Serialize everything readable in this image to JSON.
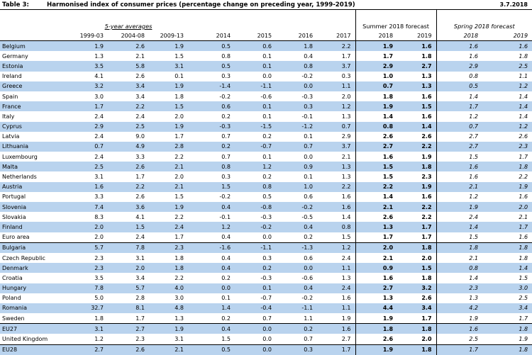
{
  "header": {
    "table_label": "Table 3:",
    "title": "Harmonised index of consumer prices (percentage change on preceding year, 1999-2019)",
    "date": "3.7.2018"
  },
  "group_headers": {
    "five_year_averages": "5-year averages",
    "summer_forecast": "Summer 2018 forecast",
    "spring_forecast": "Spring 2018 forecast"
  },
  "columns": [
    "1999-03",
    "2004-08",
    "2009-13",
    "2014",
    "2015",
    "2016",
    "2017",
    "2018",
    "2019",
    "2018",
    "2019"
  ],
  "rows": [
    {
      "country": "Belgium",
      "hl": true,
      "values": [
        "1.9",
        "2.6",
        "1.9",
        "0.5",
        "0.6",
        "1.8",
        "2.2",
        "1.9",
        "1.6",
        "1.6",
        "1.6"
      ]
    },
    {
      "country": "Germany",
      "hl": false,
      "values": [
        "1.3",
        "2.1",
        "1.5",
        "0.8",
        "0.1",
        "0.4",
        "1.7",
        "1.7",
        "1.8",
        "1.6",
        "1.8"
      ]
    },
    {
      "country": "Estonia",
      "hl": true,
      "values": [
        "3.5",
        "5.8",
        "3.1",
        "0.5",
        "0.1",
        "0.8",
        "3.7",
        "2.9",
        "2.7",
        "2.9",
        "2.5"
      ]
    },
    {
      "country": "Ireland",
      "hl": false,
      "values": [
        "4.1",
        "2.6",
        "0.1",
        "0.3",
        "0.0",
        "-0.2",
        "0.3",
        "1.0",
        "1.3",
        "0.8",
        "1.1"
      ]
    },
    {
      "country": "Greece",
      "hl": true,
      "values": [
        "3.2",
        "3.4",
        "1.9",
        "-1.4",
        "-1.1",
        "0.0",
        "1.1",
        "0.7",
        "1.3",
        "0.5",
        "1.2"
      ]
    },
    {
      "country": "Spain",
      "hl": false,
      "values": [
        "3.0",
        "3.4",
        "1.8",
        "-0.2",
        "-0.6",
        "-0.3",
        "2.0",
        "1.8",
        "1.6",
        "1.4",
        "1.4"
      ]
    },
    {
      "country": "France",
      "hl": true,
      "values": [
        "1.7",
        "2.2",
        "1.5",
        "0.6",
        "0.1",
        "0.3",
        "1.2",
        "1.9",
        "1.5",
        "1.7",
        "1.4"
      ]
    },
    {
      "country": "Italy",
      "hl": false,
      "values": [
        "2.4",
        "2.4",
        "2.0",
        "0.2",
        "0.1",
        "-0.1",
        "1.3",
        "1.4",
        "1.6",
        "1.2",
        "1.4"
      ]
    },
    {
      "country": "Cyprus",
      "hl": true,
      "values": [
        "2.9",
        "2.5",
        "1.9",
        "-0.3",
        "-1.5",
        "-1.2",
        "0.7",
        "0.8",
        "1.4",
        "0.7",
        "1.2"
      ]
    },
    {
      "country": "Latvia",
      "hl": false,
      "values": [
        "2.4",
        "9.0",
        "1.7",
        "0.7",
        "0.2",
        "0.1",
        "2.9",
        "2.6",
        "2.6",
        "2.7",
        "2.6"
      ]
    },
    {
      "country": "Lithuania",
      "hl": true,
      "values": [
        "0.7",
        "4.9",
        "2.8",
        "0.2",
        "-0.7",
        "0.7",
        "3.7",
        "2.7",
        "2.2",
        "2.7",
        "2.3"
      ]
    },
    {
      "country": "Luxembourg",
      "hl": false,
      "values": [
        "2.4",
        "3.3",
        "2.2",
        "0.7",
        "0.1",
        "0.0",
        "2.1",
        "1.6",
        "1.9",
        "1.5",
        "1.7"
      ]
    },
    {
      "country": "Malta",
      "hl": true,
      "values": [
        "2.5",
        "2.6",
        "2.1",
        "0.8",
        "1.2",
        "0.9",
        "1.3",
        "1.5",
        "1.8",
        "1.6",
        "1.8"
      ]
    },
    {
      "country": "Netherlands",
      "hl": false,
      "values": [
        "3.1",
        "1.7",
        "2.0",
        "0.3",
        "0.2",
        "0.1",
        "1.3",
        "1.5",
        "2.3",
        "1.6",
        "2.2"
      ]
    },
    {
      "country": "Austria",
      "hl": true,
      "values": [
        "1.6",
        "2.2",
        "2.1",
        "1.5",
        "0.8",
        "1.0",
        "2.2",
        "2.2",
        "1.9",
        "2.1",
        "1.9"
      ]
    },
    {
      "country": "Portugal",
      "hl": false,
      "values": [
        "3.3",
        "2.6",
        "1.5",
        "-0.2",
        "0.5",
        "0.6",
        "1.6",
        "1.4",
        "1.6",
        "1.2",
        "1.6"
      ]
    },
    {
      "country": "Slovenia",
      "hl": true,
      "values": [
        "7.4",
        "3.6",
        "1.9",
        "0.4",
        "-0.8",
        "-0.2",
        "1.6",
        "2.1",
        "2.2",
        "1.9",
        "2.0"
      ]
    },
    {
      "country": "Slovakia",
      "hl": false,
      "values": [
        "8.3",
        "4.1",
        "2.2",
        "-0.1",
        "-0.3",
        "-0.5",
        "1.4",
        "2.6",
        "2.2",
        "2.4",
        "2.1"
      ]
    },
    {
      "country": "Finland",
      "hl": true,
      "values": [
        "2.0",
        "1.5",
        "2.4",
        "1.2",
        "-0.2",
        "0.4",
        "0.8",
        "1.3",
        "1.7",
        "1.4",
        "1.7"
      ]
    },
    {
      "country": "Euro area",
      "hl": false,
      "ea": true,
      "values": [
        "2.0",
        "2.4",
        "1.7",
        "0.4",
        "0.0",
        "0.2",
        "1.5",
        "1.7",
        "1.7",
        "1.5",
        "1.6"
      ]
    },
    {
      "country": "Bulgaria",
      "hl": true,
      "ea2": true,
      "values": [
        "5.7",
        "7.8",
        "2.3",
        "-1.6",
        "-1.1",
        "-1.3",
        "1.2",
        "2.0",
        "1.8",
        "1.8",
        "1.8"
      ]
    },
    {
      "country": "Czech Republic",
      "hl": false,
      "values": [
        "2.3",
        "3.1",
        "1.8",
        "0.4",
        "0.3",
        "0.6",
        "2.4",
        "2.1",
        "2.0",
        "2.1",
        "1.8"
      ]
    },
    {
      "country": "Denmark",
      "hl": true,
      "values": [
        "2.3",
        "2.0",
        "1.8",
        "0.4",
        "0.2",
        "0.0",
        "1.1",
        "0.9",
        "1.5",
        "0.8",
        "1.4"
      ]
    },
    {
      "country": "Croatia",
      "hl": false,
      "values": [
        "3.5",
        "3.4",
        "2.2",
        "0.2",
        "-0.3",
        "-0.6",
        "1.3",
        "1.6",
        "1.8",
        "1.4",
        "1.5"
      ]
    },
    {
      "country": "Hungary",
      "hl": true,
      "values": [
        "7.8",
        "5.7",
        "4.0",
        "0.0",
        "0.1",
        "0.4",
        "2.4",
        "2.7",
        "3.2",
        "2.3",
        "3.0"
      ]
    },
    {
      "country": "Poland",
      "hl": false,
      "values": [
        "5.0",
        "2.8",
        "3.0",
        "0.1",
        "-0.7",
        "-0.2",
        "1.6",
        "1.3",
        "2.6",
        "1.3",
        "2.5"
      ]
    },
    {
      "country": "Romania",
      "hl": true,
      "values": [
        "32.7",
        "8.1",
        "4.8",
        "1.4",
        "-0.4",
        "-1.1",
        "1.1",
        "4.4",
        "3.4",
        "4.2",
        "3.4"
      ]
    },
    {
      "country": "Sweden",
      "hl": false,
      "values": [
        "1.8",
        "1.7",
        "1.3",
        "0.2",
        "0.7",
        "1.1",
        "1.9",
        "1.9",
        "1.7",
        "1.9",
        "1.7"
      ]
    },
    {
      "country": "EU27",
      "hl": true,
      "eu27": true,
      "values": [
        "3.1",
        "2.7",
        "1.9",
        "0.4",
        "0.0",
        "0.2",
        "1.6",
        "1.8",
        "1.8",
        "1.6",
        "1.8"
      ]
    },
    {
      "country": "United Kingdom",
      "hl": false,
      "values": [
        "1.2",
        "2.3",
        "3.1",
        "1.5",
        "0.0",
        "0.7",
        "2.7",
        "2.6",
        "2.0",
        "2.5",
        "1.9"
      ]
    },
    {
      "country": "EU28",
      "hl": true,
      "eu28": true,
      "values": [
        "2.7",
        "2.6",
        "2.1",
        "0.5",
        "0.0",
        "0.3",
        "1.7",
        "1.9",
        "1.8",
        "1.7",
        "1.8"
      ]
    }
  ]
}
